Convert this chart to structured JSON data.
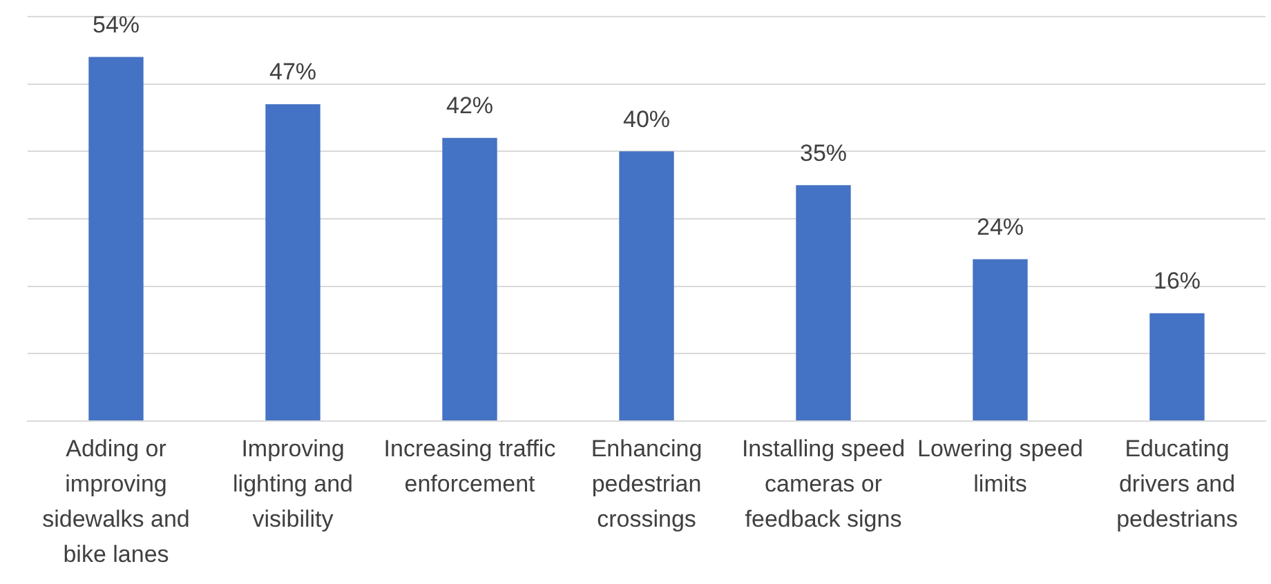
{
  "chart_data": {
    "type": "bar",
    "categories": [
      "Adding or improving sidewalks and bike lanes",
      "Improving lighting and visibility",
      "Increasing traffic enforcement",
      "Enhancing pedestrian crossings",
      "Installing speed cameras or feedback signs",
      "Lowering speed limits",
      "Educating drivers and pedestrians"
    ],
    "values": [
      54,
      47,
      42,
      40,
      35,
      24,
      16
    ],
    "value_labels": [
      "54%",
      "47%",
      "42%",
      "40%",
      "35%",
      "24%",
      "16%"
    ],
    "color": "#4472c4",
    "ylim": [
      0,
      60
    ],
    "yticks": [
      {
        "value": 0,
        "label": null
      },
      {
        "value": 10,
        "label": null
      },
      {
        "value": 20,
        "label": null
      },
      {
        "value": 30,
        "label": null
      },
      {
        "value": 40,
        "label": null
      },
      {
        "value": 50,
        "label": null
      },
      {
        "value": 60,
        "label": null
      }
    ],
    "grid": "y",
    "tick_labels": "x",
    "legend": false
  }
}
